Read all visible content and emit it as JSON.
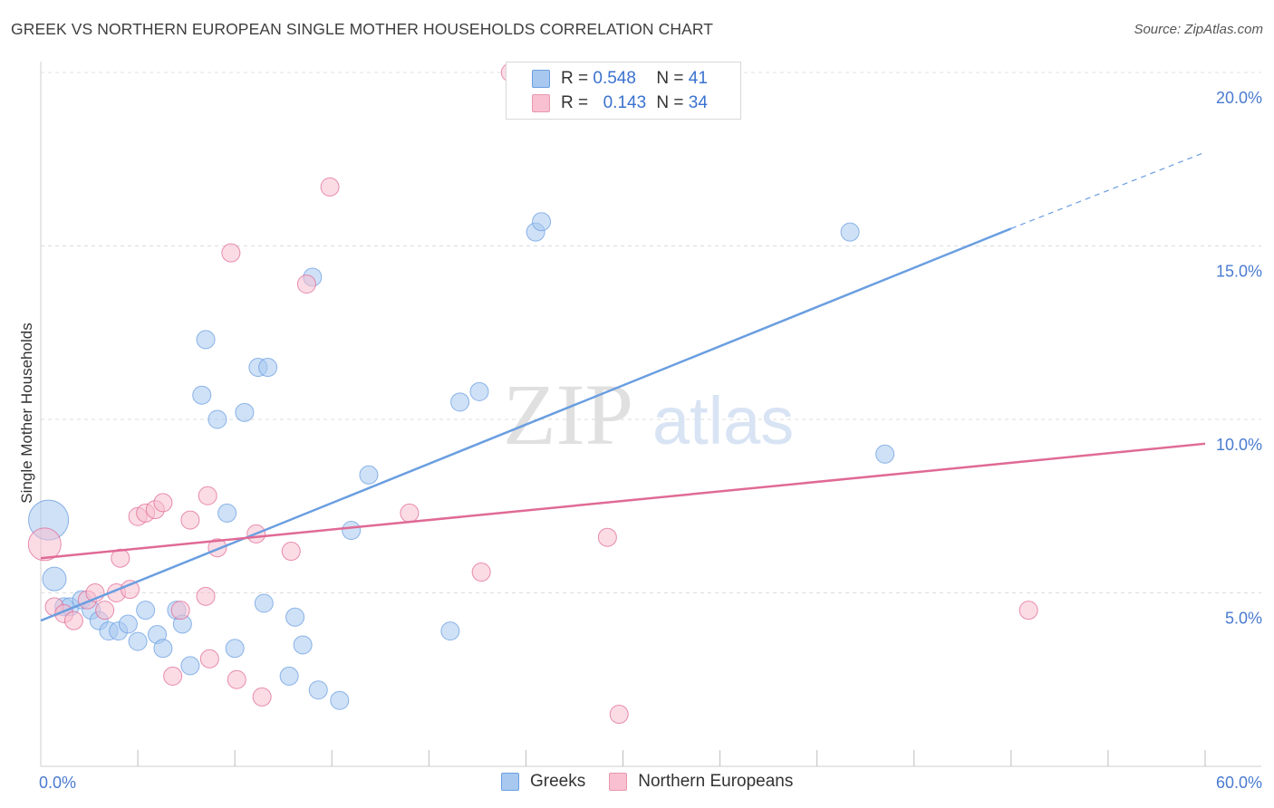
{
  "title": "GREEK VS NORTHERN EUROPEAN SINGLE MOTHER HOUSEHOLDS CORRELATION CHART",
  "source": "Source: ZipAtlas.com",
  "watermark": {
    "zip": "ZIP",
    "atlas": "atlas"
  },
  "legend_stats": [
    {
      "r_label": "R =",
      "r_value": "0.548",
      "n_label": "N =",
      "n_value": "41",
      "color": "#a8c8f0",
      "border": "#6a9ee0"
    },
    {
      "r_label": "R =",
      "r_value": "0.143",
      "n_label": "N =",
      "n_value": "34",
      "color": "#f8c0d0",
      "border": "#e898b0"
    }
  ],
  "chart_data": {
    "type": "scatter",
    "title": "GREEK VS NORTHERN EUROPEAN SINGLE MOTHER HOUSEHOLDS CORRELATION CHART",
    "xlabel": "",
    "ylabel": "Single Mother Households",
    "xlim": [
      0,
      60
    ],
    "ylim": [
      0,
      20
    ],
    "x_tick_labels": [
      "0.0%",
      "60.0%"
    ],
    "y_ticks": [
      5,
      10,
      15,
      20
    ],
    "y_tick_labels": [
      "5.0%",
      "10.0%",
      "15.0%",
      "20.0%"
    ],
    "legend": [
      "Greeks",
      "Northern Europeans"
    ],
    "series": [
      {
        "name": "Greeks",
        "color": "#6a9ee0",
        "fill": "#a8c8f0",
        "trend": {
          "x0": 0,
          "y0": 4.2,
          "x1": 50,
          "y1": 15.5,
          "dash_to_x": 60,
          "dash_to_y": 17.7
        },
        "points": [
          [
            0.4,
            7.1,
            22
          ],
          [
            0.7,
            5.4,
            13
          ],
          [
            1.2,
            4.6,
            10
          ],
          [
            1.5,
            4.6,
            10
          ],
          [
            2.1,
            4.8,
            10
          ],
          [
            2.6,
            4.5,
            10
          ],
          [
            3.0,
            4.2,
            10
          ],
          [
            3.5,
            3.9,
            10
          ],
          [
            4.0,
            3.9,
            10
          ],
          [
            4.5,
            4.1,
            10
          ],
          [
            5.0,
            3.6,
            10
          ],
          [
            5.4,
            4.5,
            10
          ],
          [
            6.0,
            3.8,
            10
          ],
          [
            6.3,
            3.4,
            10
          ],
          [
            7.0,
            4.5,
            10
          ],
          [
            7.3,
            4.1,
            10
          ],
          [
            7.7,
            2.9,
            10
          ],
          [
            8.3,
            10.7,
            10
          ],
          [
            8.5,
            12.3,
            10
          ],
          [
            9.1,
            10.0,
            10
          ],
          [
            9.6,
            7.3,
            10
          ],
          [
            10.0,
            3.4,
            10
          ],
          [
            10.5,
            10.2,
            10
          ],
          [
            11.2,
            11.5,
            10
          ],
          [
            11.7,
            11.5,
            10
          ],
          [
            11.5,
            4.7,
            10
          ],
          [
            12.8,
            2.6,
            10
          ],
          [
            13.1,
            4.3,
            10
          ],
          [
            13.5,
            3.5,
            10
          ],
          [
            14.0,
            14.1,
            10
          ],
          [
            14.3,
            2.2,
            10
          ],
          [
            15.4,
            1.9,
            10
          ],
          [
            16.0,
            6.8,
            10
          ],
          [
            16.9,
            8.4,
            10
          ],
          [
            21.1,
            3.9,
            10
          ],
          [
            21.6,
            10.5,
            10
          ],
          [
            22.6,
            10.8,
            10
          ],
          [
            25.5,
            15.4,
            10
          ],
          [
            25.8,
            15.7,
            10
          ],
          [
            41.7,
            15.4,
            10
          ],
          [
            43.5,
            9.0,
            10
          ]
        ]
      },
      {
        "name": "Northern Europeans",
        "color": "#e06a95",
        "fill": "#f8c0d0",
        "trend": {
          "x0": 0,
          "y0": 6.0,
          "x1": 60,
          "y1": 9.3
        },
        "points": [
          [
            0.2,
            6.4,
            18
          ],
          [
            0.7,
            4.6,
            10
          ],
          [
            1.2,
            4.4,
            10
          ],
          [
            1.7,
            4.2,
            10
          ],
          [
            2.4,
            4.8,
            10
          ],
          [
            2.8,
            5.0,
            10
          ],
          [
            3.3,
            4.5,
            10
          ],
          [
            3.9,
            5.0,
            10
          ],
          [
            4.1,
            6.0,
            10
          ],
          [
            4.6,
            5.1,
            10
          ],
          [
            5.0,
            7.2,
            10
          ],
          [
            5.4,
            7.3,
            10
          ],
          [
            5.9,
            7.4,
            10
          ],
          [
            6.3,
            7.6,
            10
          ],
          [
            6.8,
            2.6,
            10
          ],
          [
            7.2,
            4.5,
            10
          ],
          [
            7.7,
            7.1,
            10
          ],
          [
            8.5,
            4.9,
            10
          ],
          [
            8.6,
            7.8,
            10
          ],
          [
            8.7,
            3.1,
            10
          ],
          [
            9.1,
            6.3,
            10
          ],
          [
            9.8,
            14.8,
            10
          ],
          [
            10.1,
            2.5,
            10
          ],
          [
            11.1,
            6.7,
            10
          ],
          [
            11.4,
            2.0,
            10
          ],
          [
            12.9,
            6.2,
            10
          ],
          [
            13.7,
            13.9,
            10
          ],
          [
            14.9,
            16.7,
            10
          ],
          [
            19.0,
            7.3,
            10
          ],
          [
            22.7,
            5.6,
            10
          ],
          [
            24.2,
            20.0,
            10
          ],
          [
            29.2,
            6.6,
            10
          ],
          [
            29.8,
            1.5,
            10
          ],
          [
            50.9,
            4.5,
            10
          ]
        ]
      }
    ]
  }
}
